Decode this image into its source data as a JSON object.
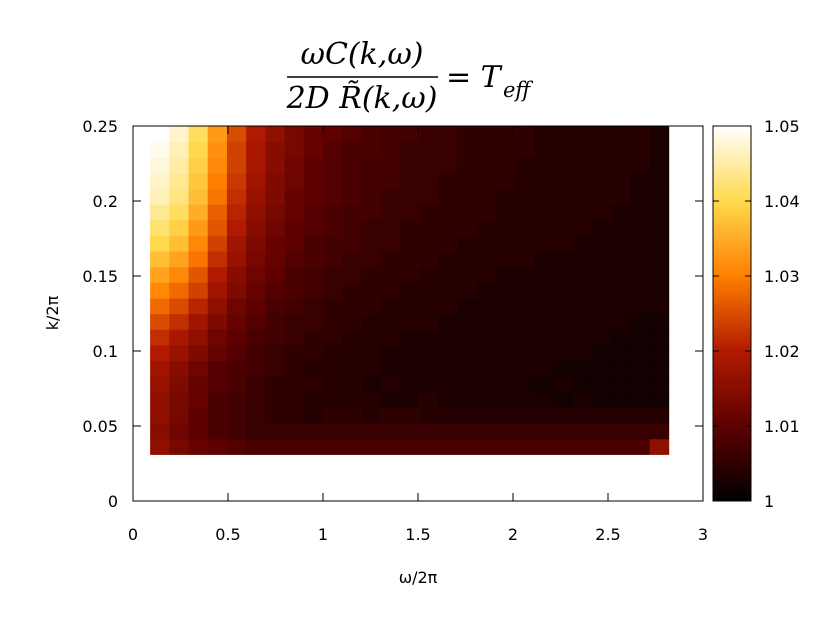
{
  "chart_data": {
    "type": "heatmap",
    "title": {
      "numerator": "ωC(k,ω)",
      "denominator": "2D R̃(k,ω)",
      "rhs": "= T",
      "rhs_sub": "eff"
    },
    "xlabel": "ω/2π",
    "ylabel": "k/2π",
    "xlim": [
      0,
      3
    ],
    "ylim": [
      0,
      0.25
    ],
    "x_ticks": [
      "0",
      "0.5",
      "1",
      "1.5",
      "2",
      "2.5",
      "3"
    ],
    "y_ticks": [
      "0",
      "0.05",
      "0.1",
      "0.15",
      "0.2",
      "0.25"
    ],
    "colorbar": {
      "range": [
        1.0,
        1.05
      ],
      "ticks": [
        "1",
        "1.01",
        "1.02",
        "1.03",
        "1.04",
        "1.05"
      ],
      "colormap": [
        "#000000",
        "#5e0000",
        "#b11a00",
        "#ff7f00",
        "#ffd94d",
        "#ffffff"
      ]
    },
    "grid": false,
    "legend": "colorbar-right",
    "x_range": [
      0.09,
      2.82
    ],
    "y_range": [
      0.031,
      0.25
    ],
    "cols": 27,
    "rows": 21,
    "values": [
      [
        1.016,
        1.013,
        1.011,
        1.01,
        1.009,
        1.008,
        1.008,
        1.008,
        1.008,
        1.008,
        1.008,
        1.008,
        1.008,
        1.008,
        1.008,
        1.008,
        1.008,
        1.008,
        1.008,
        1.008,
        1.008,
        1.008,
        1.008,
        1.008,
        1.008,
        1.008,
        1.016
      ],
      [
        1.015,
        1.012,
        1.01,
        1.008,
        1.007,
        1.006,
        1.006,
        1.006,
        1.006,
        1.006,
        1.006,
        1.006,
        1.006,
        1.006,
        1.006,
        1.006,
        1.006,
        1.006,
        1.006,
        1.006,
        1.006,
        1.006,
        1.006,
        1.006,
        1.006,
        1.006,
        1.006
      ],
      [
        1.016,
        1.013,
        1.01,
        1.008,
        1.007,
        1.006,
        1.005,
        1.005,
        1.004,
        1.005,
        1.005,
        1.004,
        1.005,
        1.005,
        1.004,
        1.004,
        1.004,
        1.004,
        1.004,
        1.004,
        1.004,
        1.004,
        1.004,
        1.004,
        1.004,
        1.004,
        1.004
      ],
      [
        1.016,
        1.013,
        1.011,
        1.008,
        1.007,
        1.006,
        1.005,
        1.005,
        1.004,
        1.004,
        1.004,
        1.004,
        1.003,
        1.003,
        1.004,
        1.003,
        1.003,
        1.003,
        1.003,
        1.003,
        1.003,
        1.002,
        1.003,
        1.002,
        1.002,
        1.002,
        1.002
      ],
      [
        1.017,
        1.014,
        1.011,
        1.009,
        1.008,
        1.006,
        1.005,
        1.005,
        1.005,
        1.004,
        1.004,
        1.003,
        1.004,
        1.003,
        1.003,
        1.003,
        1.003,
        1.003,
        1.003,
        1.003,
        1.002,
        1.003,
        1.002,
        1.002,
        1.002,
        1.002,
        1.002
      ],
      [
        1.018,
        1.015,
        1.012,
        1.009,
        1.008,
        1.007,
        1.006,
        1.005,
        1.004,
        1.004,
        1.004,
        1.004,
        1.003,
        1.003,
        1.003,
        1.003,
        1.003,
        1.003,
        1.003,
        1.003,
        1.003,
        1.002,
        1.002,
        1.002,
        1.002,
        1.002,
        1.002
      ],
      [
        1.02,
        1.017,
        1.014,
        1.011,
        1.009,
        1.007,
        1.006,
        1.005,
        1.005,
        1.004,
        1.004,
        1.004,
        1.003,
        1.003,
        1.003,
        1.003,
        1.003,
        1.003,
        1.003,
        1.003,
        1.003,
        1.003,
        1.003,
        1.002,
        1.002,
        1.002,
        1.002
      ],
      [
        1.022,
        1.019,
        1.016,
        1.012,
        1.01,
        1.008,
        1.007,
        1.006,
        1.005,
        1.005,
        1.004,
        1.004,
        1.004,
        1.003,
        1.003,
        1.003,
        1.003,
        1.003,
        1.003,
        1.003,
        1.003,
        1.003,
        1.003,
        1.003,
        1.002,
        1.002,
        1.002
      ],
      [
        1.025,
        1.022,
        1.018,
        1.014,
        1.011,
        1.009,
        1.007,
        1.006,
        1.006,
        1.005,
        1.005,
        1.004,
        1.004,
        1.004,
        1.004,
        1.003,
        1.003,
        1.003,
        1.003,
        1.003,
        1.003,
        1.003,
        1.003,
        1.003,
        1.003,
        1.002,
        1.002
      ],
      [
        1.028,
        1.025,
        1.021,
        1.016,
        1.012,
        1.01,
        1.008,
        1.007,
        1.006,
        1.005,
        1.005,
        1.005,
        1.004,
        1.004,
        1.004,
        1.004,
        1.003,
        1.003,
        1.003,
        1.003,
        1.003,
        1.003,
        1.003,
        1.003,
        1.003,
        1.003,
        1.003
      ],
      [
        1.031,
        1.028,
        1.024,
        1.018,
        1.014,
        1.011,
        1.009,
        1.008,
        1.007,
        1.006,
        1.005,
        1.005,
        1.005,
        1.004,
        1.004,
        1.004,
        1.004,
        1.003,
        1.003,
        1.003,
        1.003,
        1.003,
        1.003,
        1.003,
        1.003,
        1.003,
        1.003
      ],
      [
        1.034,
        1.031,
        1.026,
        1.02,
        1.015,
        1.012,
        1.01,
        1.008,
        1.007,
        1.006,
        1.006,
        1.005,
        1.005,
        1.005,
        1.004,
        1.004,
        1.004,
        1.004,
        1.003,
        1.003,
        1.003,
        1.003,
        1.003,
        1.003,
        1.003,
        1.003,
        1.003
      ],
      [
        1.037,
        1.034,
        1.029,
        1.022,
        1.017,
        1.013,
        1.011,
        1.009,
        1.008,
        1.007,
        1.006,
        1.006,
        1.005,
        1.005,
        1.005,
        1.004,
        1.004,
        1.004,
        1.004,
        1.004,
        1.003,
        1.003,
        1.003,
        1.003,
        1.003,
        1.003,
        1.003
      ],
      [
        1.04,
        1.037,
        1.031,
        1.024,
        1.018,
        1.014,
        1.011,
        1.01,
        1.008,
        1.007,
        1.007,
        1.006,
        1.006,
        1.005,
        1.005,
        1.005,
        1.004,
        1.004,
        1.004,
        1.004,
        1.004,
        1.004,
        1.003,
        1.003,
        1.003,
        1.003,
        1.003
      ],
      [
        1.042,
        1.039,
        1.033,
        1.026,
        1.02,
        1.015,
        1.012,
        1.01,
        1.009,
        1.008,
        1.007,
        1.006,
        1.006,
        1.005,
        1.005,
        1.005,
        1.005,
        1.004,
        1.004,
        1.004,
        1.004,
        1.004,
        1.004,
        1.003,
        1.003,
        1.003,
        1.003
      ],
      [
        1.044,
        1.041,
        1.035,
        1.027,
        1.021,
        1.016,
        1.013,
        1.011,
        1.009,
        1.008,
        1.007,
        1.007,
        1.006,
        1.006,
        1.005,
        1.005,
        1.005,
        1.005,
        1.004,
        1.004,
        1.004,
        1.004,
        1.004,
        1.004,
        1.003,
        1.003,
        1.003
      ],
      [
        1.046,
        1.043,
        1.037,
        1.029,
        1.022,
        1.017,
        1.014,
        1.011,
        1.01,
        1.009,
        1.008,
        1.007,
        1.006,
        1.006,
        1.006,
        1.005,
        1.005,
        1.005,
        1.004,
        1.004,
        1.004,
        1.004,
        1.004,
        1.004,
        1.004,
        1.003,
        1.003
      ],
      [
        1.047,
        1.044,
        1.038,
        1.03,
        1.023,
        1.018,
        1.014,
        1.012,
        1.01,
        1.009,
        1.008,
        1.007,
        1.007,
        1.006,
        1.006,
        1.005,
        1.005,
        1.005,
        1.005,
        1.004,
        1.004,
        1.004,
        1.004,
        1.004,
        1.004,
        1.003,
        1.003
      ],
      [
        1.048,
        1.045,
        1.039,
        1.031,
        1.024,
        1.019,
        1.015,
        1.012,
        1.01,
        1.009,
        1.008,
        1.007,
        1.007,
        1.006,
        1.006,
        1.006,
        1.005,
        1.005,
        1.005,
        1.004,
        1.004,
        1.004,
        1.004,
        1.004,
        1.004,
        1.004,
        1.003
      ],
      [
        1.049,
        1.046,
        1.04,
        1.032,
        1.024,
        1.019,
        1.015,
        1.013,
        1.011,
        1.009,
        1.008,
        1.008,
        1.007,
        1.006,
        1.006,
        1.006,
        1.005,
        1.005,
        1.005,
        1.005,
        1.004,
        1.004,
        1.004,
        1.004,
        1.004,
        1.004,
        1.003
      ],
      [
        1.05,
        1.047,
        1.041,
        1.033,
        1.025,
        1.02,
        1.016,
        1.013,
        1.011,
        1.01,
        1.009,
        1.008,
        1.007,
        1.007,
        1.006,
        1.006,
        1.005,
        1.005,
        1.005,
        1.005,
        1.004,
        1.004,
        1.004,
        1.004,
        1.004,
        1.004,
        1.003
      ]
    ]
  }
}
